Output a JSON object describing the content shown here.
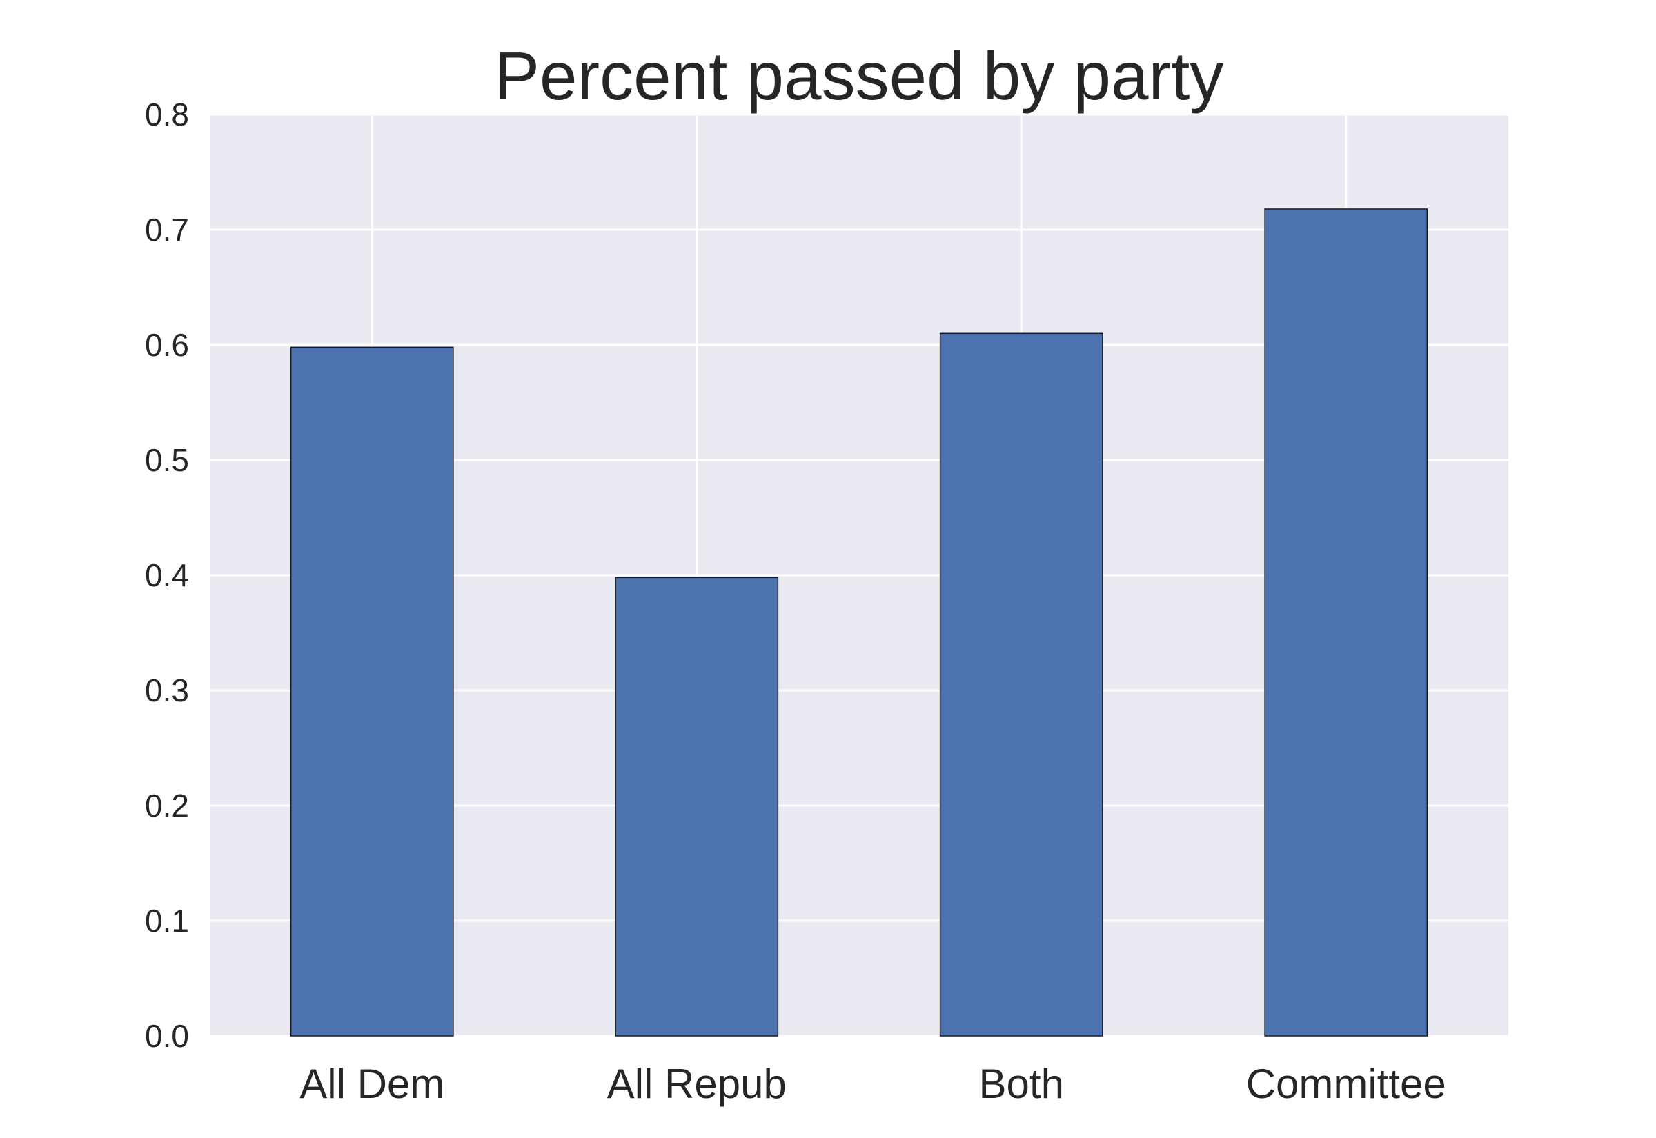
{
  "chart_data": {
    "type": "bar",
    "title": "Percent passed by party",
    "xlabel": "",
    "ylabel": "",
    "categories": [
      "All Dem",
      "All Repub",
      "Both",
      "Committee"
    ],
    "values": [
      0.598,
      0.398,
      0.61,
      0.718
    ],
    "ylim": [
      0,
      0.8
    ],
    "yticks": [
      0.0,
      0.1,
      0.2,
      0.3,
      0.4,
      0.5,
      0.6,
      0.7,
      0.8
    ],
    "ytick_labels": [
      "0.0",
      "0.1",
      "0.2",
      "0.3",
      "0.4",
      "0.5",
      "0.6",
      "0.7",
      "0.8"
    ],
    "grid": true,
    "legend": "none",
    "colors": {
      "bar": "#4c72b0",
      "bar_edge": "#1a1a1a",
      "plot_background": "#eaeaf2",
      "grid": "#ffffff",
      "text": "#262626"
    }
  }
}
